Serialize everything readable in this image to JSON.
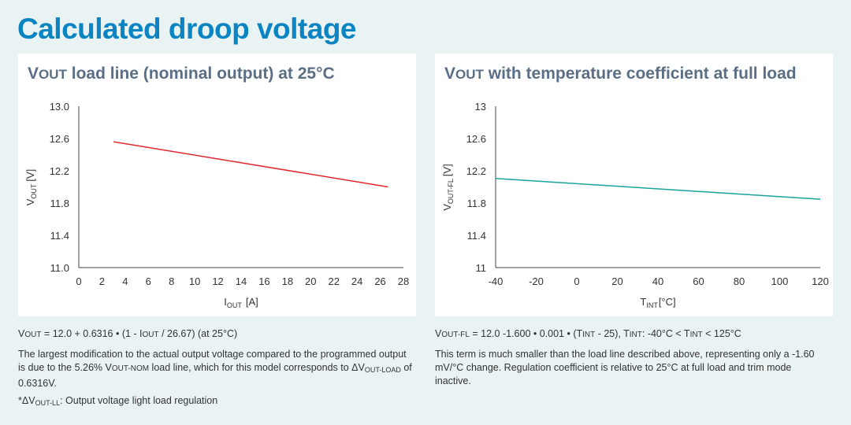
{
  "page": {
    "title": "Calculated droop voltage"
  },
  "left": {
    "title_v": "V",
    "title_sub": "OUT",
    "title_rest": " load line (nominal output) at 25°C",
    "formula_pre": "V",
    "formula_sub": "OUT",
    "formula_mid": " = 12.0 + 0.6316 • (1 - I",
    "formula_sub2": "OUT",
    "formula_post": " / 26.67) (at 25°C)",
    "desc_1": "The largest modification to the actual output voltage compared to the programmed output is due to the 5.26% V",
    "desc_sub1": "OUT-NOM",
    "desc_2": " load line, which for this model corresponds to ΔV",
    "desc_sub2": "OUT-LOAD",
    "desc_3": " of 0.6316V.",
    "note_pre": "*ΔV",
    "note_sub": "OUT-LL",
    "note_post": ": Output voltage light load regulation"
  },
  "right": {
    "title_v": "V",
    "title_sub": "OUT",
    "title_rest": " with temperature coefficient at full load",
    "formula_pre": "V",
    "formula_sub": "OUT-FL",
    "formula_mid": " = 12.0 -1.600 • 0.001 • (T",
    "formula_sub2": "INT",
    "formula_mid2": " - 25), T",
    "formula_sub3": "INT",
    "formula_mid3": ": -40°C < T",
    "formula_sub4": "INT",
    "formula_post": " < 125°C",
    "desc": "This term is much smaller than the load line described above, representing only a -1.60 mV/°C change. Regulation coefficient is relative to 25°C at full load and trim mode inactive."
  },
  "chart_data": [
    {
      "type": "line",
      "title": "VOUT load line (nominal output) at 25°C",
      "xlabel": "I",
      "xlabel_sub": "OUT",
      "xlabel_unit": "[A]",
      "ylabel": "V",
      "ylabel_sub": "OUT",
      "ylabel_unit": "[V]",
      "xlim": [
        0,
        28
      ],
      "ylim": [
        11.0,
        13.0
      ],
      "xticks": [
        0,
        2,
        4,
        6,
        8,
        10,
        12,
        14,
        16,
        18,
        20,
        22,
        24,
        26,
        28
      ],
      "yticks": [
        "11.0",
        "11.4",
        "11.8",
        "12.2",
        "12.6",
        "13.0"
      ],
      "grid": false,
      "series": [
        {
          "name": "VOUT",
          "color": "#e0292e",
          "x": [
            3,
            26.67
          ],
          "y": [
            12.56,
            12.0
          ]
        }
      ]
    },
    {
      "type": "line",
      "title": "VOUT with temperature coefficient at full load",
      "xlabel": "T",
      "xlabel_sub": "INT",
      "xlabel_unit": "[°C]",
      "ylabel": "V",
      "ylabel_sub": "OUT-FL",
      "ylabel_unit": "[V]",
      "xlim": [
        -40,
        120
      ],
      "ylim": [
        11,
        13
      ],
      "xticks": [
        -40,
        -20,
        0,
        20,
        40,
        60,
        80,
        100,
        120
      ],
      "yticks": [
        "11",
        "11.4",
        "11.8",
        "12.2",
        "12.6",
        "13"
      ],
      "grid": false,
      "series": [
        {
          "name": "VOUT-FL",
          "color": "#1aa39a",
          "x": [
            -40,
            120
          ],
          "y": [
            12.104,
            11.848
          ]
        }
      ]
    }
  ]
}
